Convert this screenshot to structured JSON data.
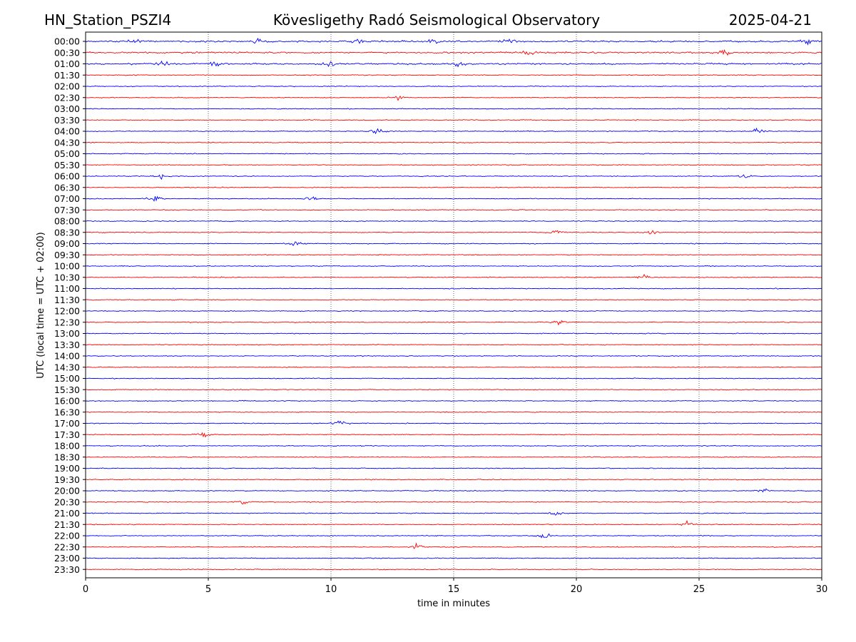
{
  "header": {
    "station": "HN_Station_PSZI4",
    "title": "Kövesligethy Radó Seismological Observatory",
    "date": "2025-04-21"
  },
  "chart_data": {
    "type": "line",
    "xlabel": "time in minutes",
    "ylabel": "UTC (local time = UTC + 02:00)",
    "xlim": [
      0,
      30
    ],
    "x_ticks": [
      "0",
      "5",
      "10",
      "15",
      "20",
      "25",
      "30"
    ],
    "grid": "vertical dotted lines at x = 5, 10, 15, 20, 25",
    "trace_colors": [
      "#0000ff",
      "#ff0000"
    ],
    "rows": [
      "00:00",
      "00:30",
      "01:00",
      "01:30",
      "02:00",
      "02:30",
      "03:00",
      "03:30",
      "04:00",
      "04:30",
      "05:00",
      "05:30",
      "06:00",
      "06:30",
      "07:00",
      "07:30",
      "08:00",
      "08:30",
      "09:00",
      "09:30",
      "10:00",
      "10:30",
      "11:00",
      "11:30",
      "12:00",
      "12:30",
      "13:00",
      "13:30",
      "14:00",
      "14:30",
      "15:00",
      "15:30",
      "16:00",
      "16:30",
      "17:00",
      "17:30",
      "18:00",
      "18:30",
      "19:00",
      "19:30",
      "20:00",
      "20:30",
      "21:00",
      "21:30",
      "22:00",
      "22:30",
      "23:00",
      "23:30"
    ],
    "notable_events": [
      {
        "row": "00:00",
        "minutes": [
          2.0,
          7.0,
          11.2,
          14.2,
          17.3,
          29.4
        ]
      },
      {
        "row": "00:30",
        "minutes": [
          18.1,
          26.0
        ]
      },
      {
        "row": "01:00",
        "minutes": [
          3.2,
          5.3,
          10.0,
          15.2
        ]
      },
      {
        "row": "02:30",
        "minutes": [
          12.7
        ]
      },
      {
        "row": "04:00",
        "minutes": [
          11.9,
          27.4
        ]
      },
      {
        "row": "06:00",
        "minutes": [
          3.1,
          26.8
        ]
      },
      {
        "row": "07:00",
        "minutes": [
          2.8,
          9.2
        ]
      },
      {
        "row": "08:30",
        "minutes": [
          19.2,
          23.0
        ]
      },
      {
        "row": "09:00",
        "minutes": [
          8.5
        ]
      },
      {
        "row": "10:30",
        "minutes": [
          22.7
        ]
      },
      {
        "row": "12:30",
        "minutes": [
          19.3
        ]
      },
      {
        "row": "17:00",
        "minutes": [
          10.4
        ]
      },
      {
        "row": "17:30",
        "minutes": [
          4.8
        ]
      },
      {
        "row": "20:00",
        "minutes": [
          27.6
        ]
      },
      {
        "row": "20:30",
        "minutes": [
          6.4
        ]
      },
      {
        "row": "21:00",
        "minutes": [
          19.2
        ]
      },
      {
        "row": "21:30",
        "minutes": [
          24.5
        ]
      },
      {
        "row": "22:00",
        "minutes": [
          18.7
        ]
      },
      {
        "row": "22:30",
        "minutes": [
          13.5
        ]
      }
    ]
  }
}
